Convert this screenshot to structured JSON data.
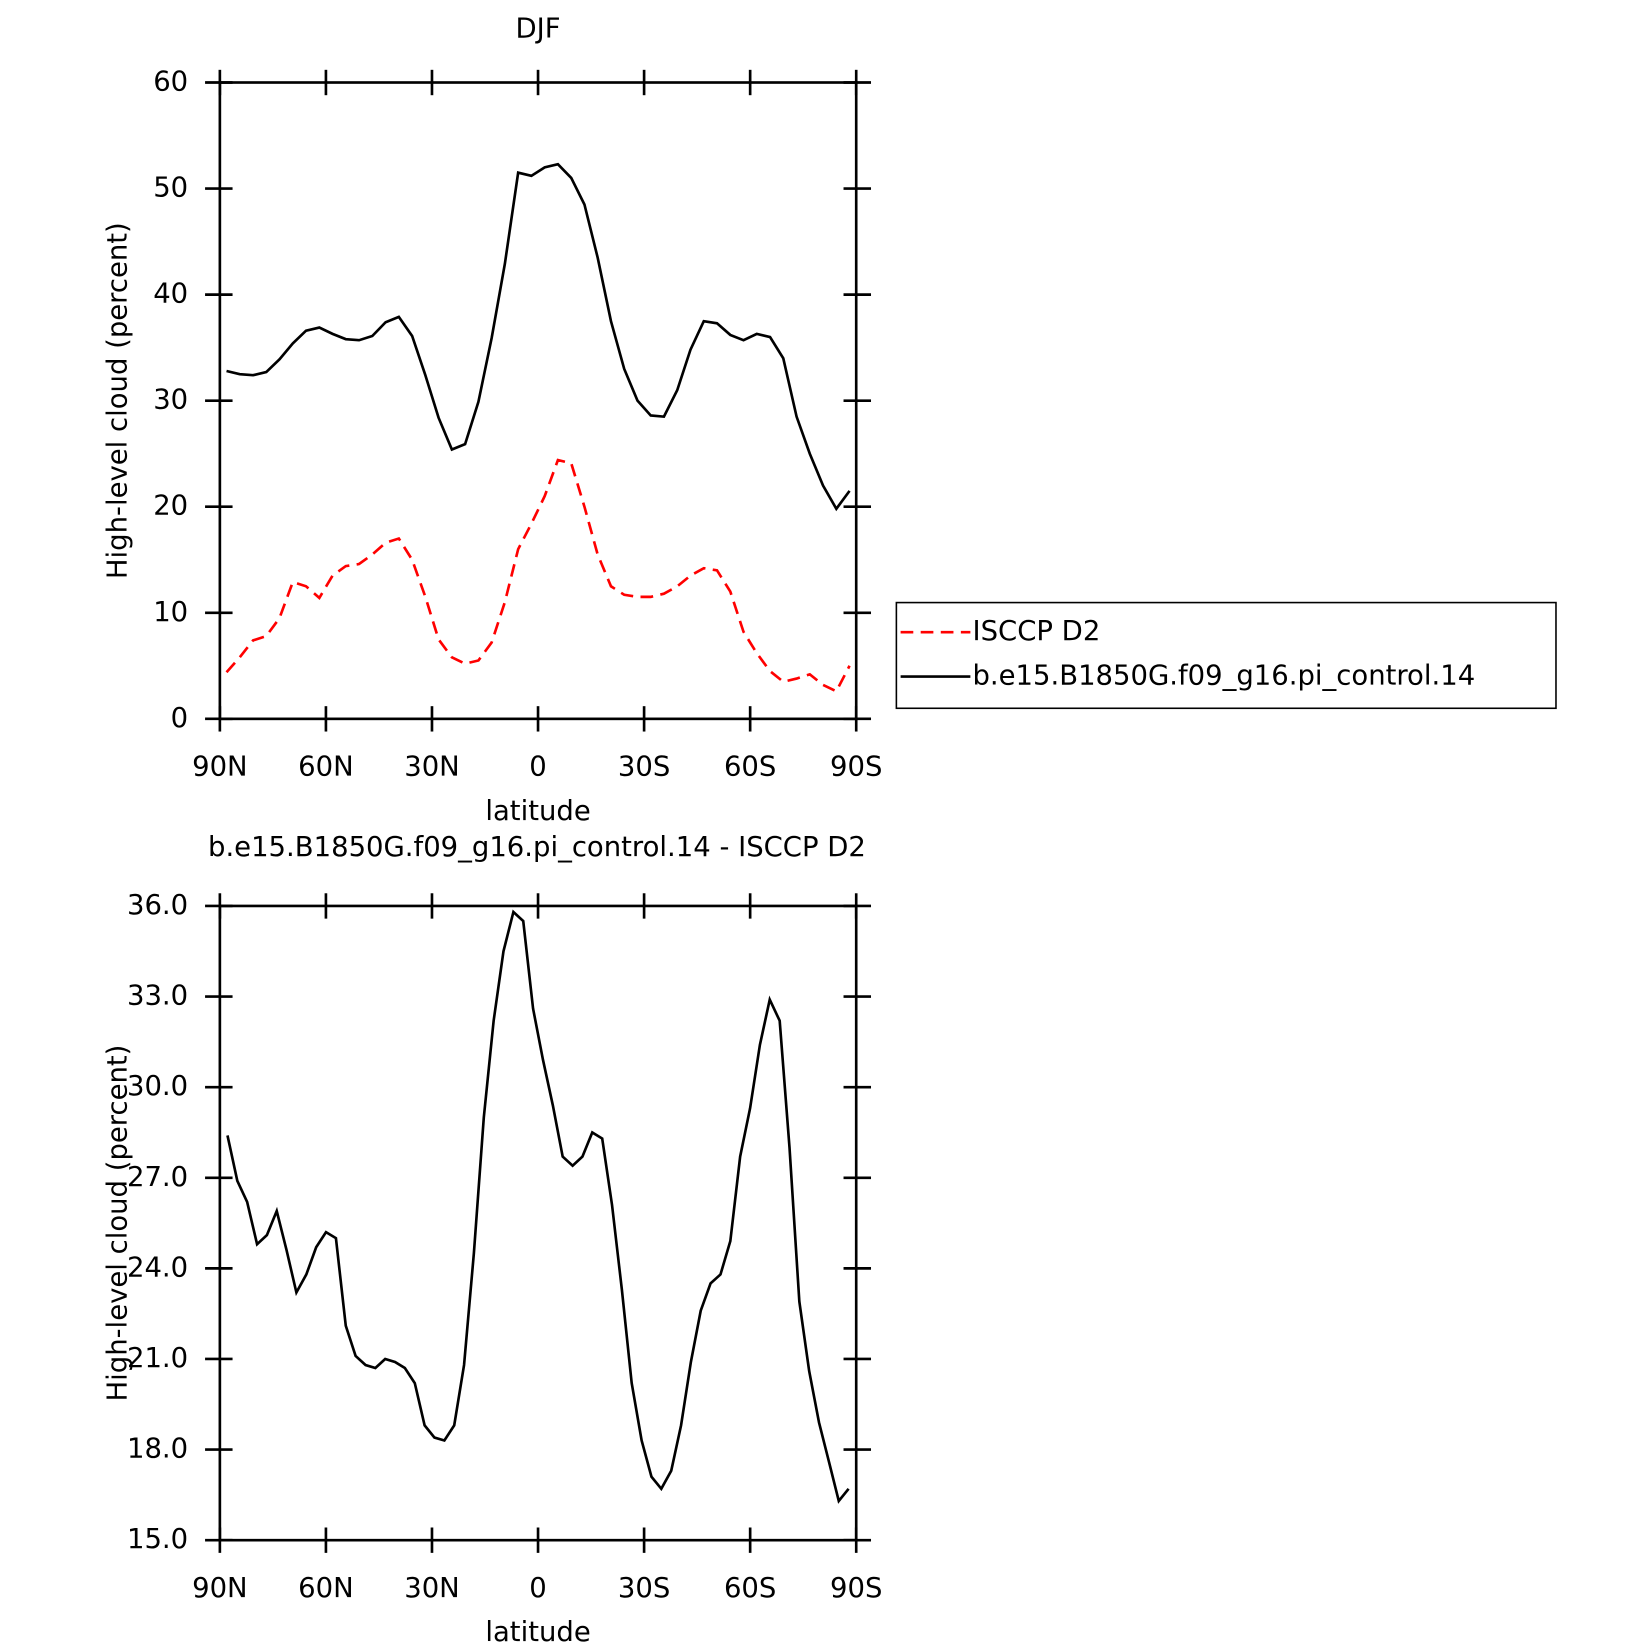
{
  "chart_data": [
    {
      "type": "line",
      "title": "DJF",
      "xlabel": "latitude",
      "ylabel": "High-level cloud (percent)",
      "x": [
        88.125,
        84.375,
        80.625,
        76.875,
        73.125,
        69.375,
        65.625,
        61.875,
        58.125,
        54.375,
        50.625,
        46.875,
        43.125,
        39.375,
        35.625,
        31.875,
        28.125,
        24.375,
        20.625,
        16.875,
        13.125,
        9.375,
        5.625,
        1.875,
        -1.875,
        -5.625,
        -9.375,
        -13.125,
        -16.875,
        -20.625,
        -24.375,
        -28.125,
        -31.875,
        -35.625,
        -39.375,
        -43.125,
        -46.875,
        -50.625,
        -54.375,
        -58.125,
        -61.875,
        -65.625,
        -69.375,
        -73.125,
        -76.875,
        -80.625,
        -84.375,
        -88.125
      ],
      "series": [
        {
          "name": "ISCCP D2",
          "color": "#ff0000",
          "dash": true,
          "values": [
            4.4,
            5.8,
            7.4,
            7.8,
            9.5,
            12.9,
            12.5,
            11.4,
            13.5,
            14.4,
            14.6,
            15.5,
            16.6,
            17.0,
            15.0,
            11.5,
            7.5,
            5.8,
            5.2,
            5.5,
            7.2,
            11.0,
            16.0,
            18.4,
            21.0,
            24.4,
            24.1,
            20.0,
            15.5,
            12.5,
            11.7,
            11.5,
            11.5,
            11.8,
            12.5,
            13.5,
            14.2,
            14.0,
            12.0,
            8.2,
            6.2,
            4.5,
            3.5,
            3.8,
            4.2,
            3.2,
            2.6,
            5.0
          ]
        },
        {
          "name": "b.e15.B1850G.f09_g16.pi_control.14",
          "color": "#000000",
          "dash": false,
          "values": [
            32.8,
            32.5,
            32.4,
            32.7,
            33.9,
            35.4,
            36.6,
            36.9,
            36.3,
            35.8,
            35.7,
            36.1,
            37.4,
            37.9,
            36.1,
            32.4,
            28.4,
            25.4,
            25.9,
            29.9,
            35.9,
            42.9,
            51.5,
            51.2,
            52.0,
            52.3,
            51.0,
            48.5,
            43.5,
            37.5,
            33.0,
            30.0,
            28.6,
            28.5,
            31.0,
            34.8,
            37.5,
            37.3,
            36.2,
            35.7,
            36.3,
            36.0,
            34.0,
            28.5,
            25.0,
            22.0,
            19.8,
            21.5
          ]
        }
      ],
      "xlim": [
        90,
        -90
      ],
      "xticks": [
        {
          "value": 90,
          "label": "90N"
        },
        {
          "value": 60,
          "label": "60N"
        },
        {
          "value": 30,
          "label": "30N"
        },
        0,
        {
          "value": -30,
          "label": "30S"
        },
        {
          "value": -60,
          "label": "60S"
        },
        {
          "value": -90,
          "label": "90S"
        }
      ],
      "ylim": [
        0,
        60
      ],
      "yticks": [
        0,
        10,
        20,
        30,
        40,
        50,
        60
      ],
      "legend": "right"
    },
    {
      "type": "line",
      "title": "b.e15.B1850G.f09_g16.pi_control.14 - ISCCP D2",
      "xlabel": "latitude",
      "ylabel": "High-level cloud (percent)",
      "x": [
        87.86,
        85.07,
        82.28,
        79.49,
        76.7,
        73.92,
        71.13,
        68.34,
        65.55,
        62.76,
        59.97,
        57.18,
        54.39,
        51.6,
        48.81,
        46.03,
        43.24,
        40.45,
        37.66,
        34.87,
        32.08,
        29.29,
        26.5,
        23.71,
        20.92,
        18.14,
        15.35,
        12.56,
        9.77,
        6.98,
        4.19,
        1.4,
        -1.4,
        -4.19,
        -6.98,
        -9.77,
        -12.56,
        -15.35,
        -18.14,
        -20.92,
        -23.71,
        -26.5,
        -29.29,
        -32.08,
        -34.87,
        -37.66,
        -40.45,
        -43.24,
        -46.03,
        -48.81,
        -51.6,
        -54.39,
        -57.18,
        -59.97,
        -62.76,
        -65.55,
        -68.34,
        -71.13,
        -73.92,
        -76.7,
        -79.49,
        -82.28,
        -85.07,
        -87.86
      ],
      "series": [
        {
          "name": "b.e15.B1850G.f09_g16.pi_control.14 - ISCCP D2",
          "color": "#000000",
          "dash": false,
          "values": [
            28.4,
            26.9,
            26.2,
            24.8,
            25.1,
            25.9,
            24.6,
            23.2,
            23.8,
            24.7,
            25.2,
            25.0,
            22.1,
            21.1,
            20.8,
            20.7,
            21.0,
            20.9,
            20.7,
            20.2,
            18.8,
            18.4,
            18.3,
            18.8,
            20.8,
            24.5,
            29.0,
            32.2,
            34.5,
            35.8,
            35.5,
            32.6,
            30.9,
            29.4,
            27.7,
            27.4,
            27.7,
            28.5,
            28.3,
            26.1,
            23.3,
            20.2,
            18.3,
            17.1,
            16.7,
            17.3,
            18.8,
            20.9,
            22.6,
            23.5,
            23.8,
            24.9,
            27.7,
            29.3,
            31.4,
            32.9,
            32.2,
            28.0,
            22.9,
            20.6,
            18.9,
            17.6,
            16.3,
            16.7
          ]
        }
      ],
      "xlim": [
        90,
        -90
      ],
      "xticks": [
        {
          "value": 90,
          "label": "90N"
        },
        {
          "value": 60,
          "label": "60N"
        },
        {
          "value": 30,
          "label": "30N"
        },
        0,
        {
          "value": -30,
          "label": "30S"
        },
        {
          "value": -60,
          "label": "60S"
        },
        {
          "value": -90,
          "label": "90S"
        }
      ],
      "ylim": [
        15,
        36
      ],
      "yticks": [
        {
          "value": 15,
          "label": "15.0"
        },
        {
          "value": 18,
          "label": "18.0"
        },
        {
          "value": 21,
          "label": "21.0"
        },
        {
          "value": 24,
          "label": "24.0"
        },
        {
          "value": 27,
          "label": "27.0"
        },
        {
          "value": 30,
          "label": "30.0"
        },
        {
          "value": 33,
          "label": "33.0"
        },
        {
          "value": 36,
          "label": "36.0"
        }
      ]
    }
  ]
}
